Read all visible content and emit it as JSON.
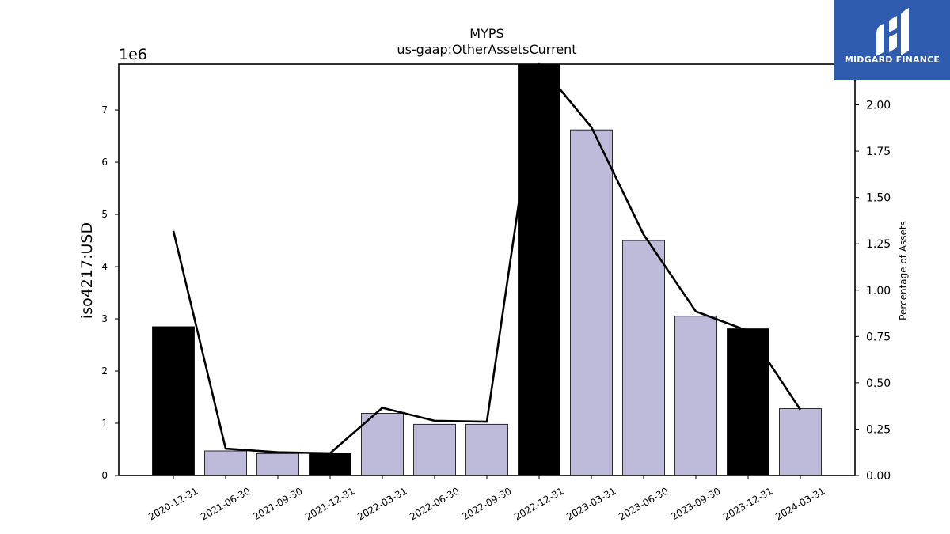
{
  "chart_data": {
    "type": "bar",
    "title": "MYPS",
    "subtitle": "us-gaap:OtherAssetsCurrent",
    "ylabel": "iso4217:USD",
    "y_offset_label": "1e6",
    "y2label": "Percentage of Assets",
    "categories": [
      "2020-12-31",
      "2021-06-30",
      "2021-09-30",
      "2021-12-31",
      "2022-03-31",
      "2022-06-30",
      "2022-09-30",
      "2022-12-31",
      "2023-03-31",
      "2023-06-30",
      "2023-09-30",
      "2023-12-31",
      "2024-03-31"
    ],
    "values": [
      2850000,
      470000,
      420000,
      420000,
      1190000,
      980000,
      980000,
      7880000,
      6620000,
      4500000,
      3050000,
      2810000,
      1280000
    ],
    "bar_colors": [
      "#000000",
      "#bebad9",
      "#bebad9",
      "#000000",
      "#bebad9",
      "#bebad9",
      "#bebad9",
      "#000000",
      "#bebad9",
      "#bebad9",
      "#bebad9",
      "#000000",
      "#bebad9"
    ],
    "line_series": {
      "values": [
        1.32,
        0.145,
        0.125,
        0.12,
        0.365,
        0.295,
        0.29,
        2.22,
        1.88,
        1.3,
        0.885,
        0.78,
        0.355
      ]
    },
    "ylim": [
      0,
      7880000
    ],
    "y2lim": [
      0,
      2.22
    ],
    "yticks": [
      0,
      1000000,
      2000000,
      3000000,
      4000000,
      5000000,
      6000000,
      7000000
    ],
    "ytick_labels": [
      "0",
      "1",
      "2",
      "3",
      "4",
      "5",
      "6",
      "7"
    ],
    "y2ticks": [
      0,
      0.25,
      0.5,
      0.75,
      1.0,
      1.25,
      1.5,
      1.75,
      2.0
    ],
    "y2tick_labels": [
      "0.00",
      "0.25",
      "0.50",
      "0.75",
      "1.00",
      "1.25",
      "1.50",
      "1.75",
      "2.00"
    ],
    "grid": false
  },
  "logo": {
    "text": "MIDGARD FINANCE",
    "bg_color": "#2f5cae"
  }
}
